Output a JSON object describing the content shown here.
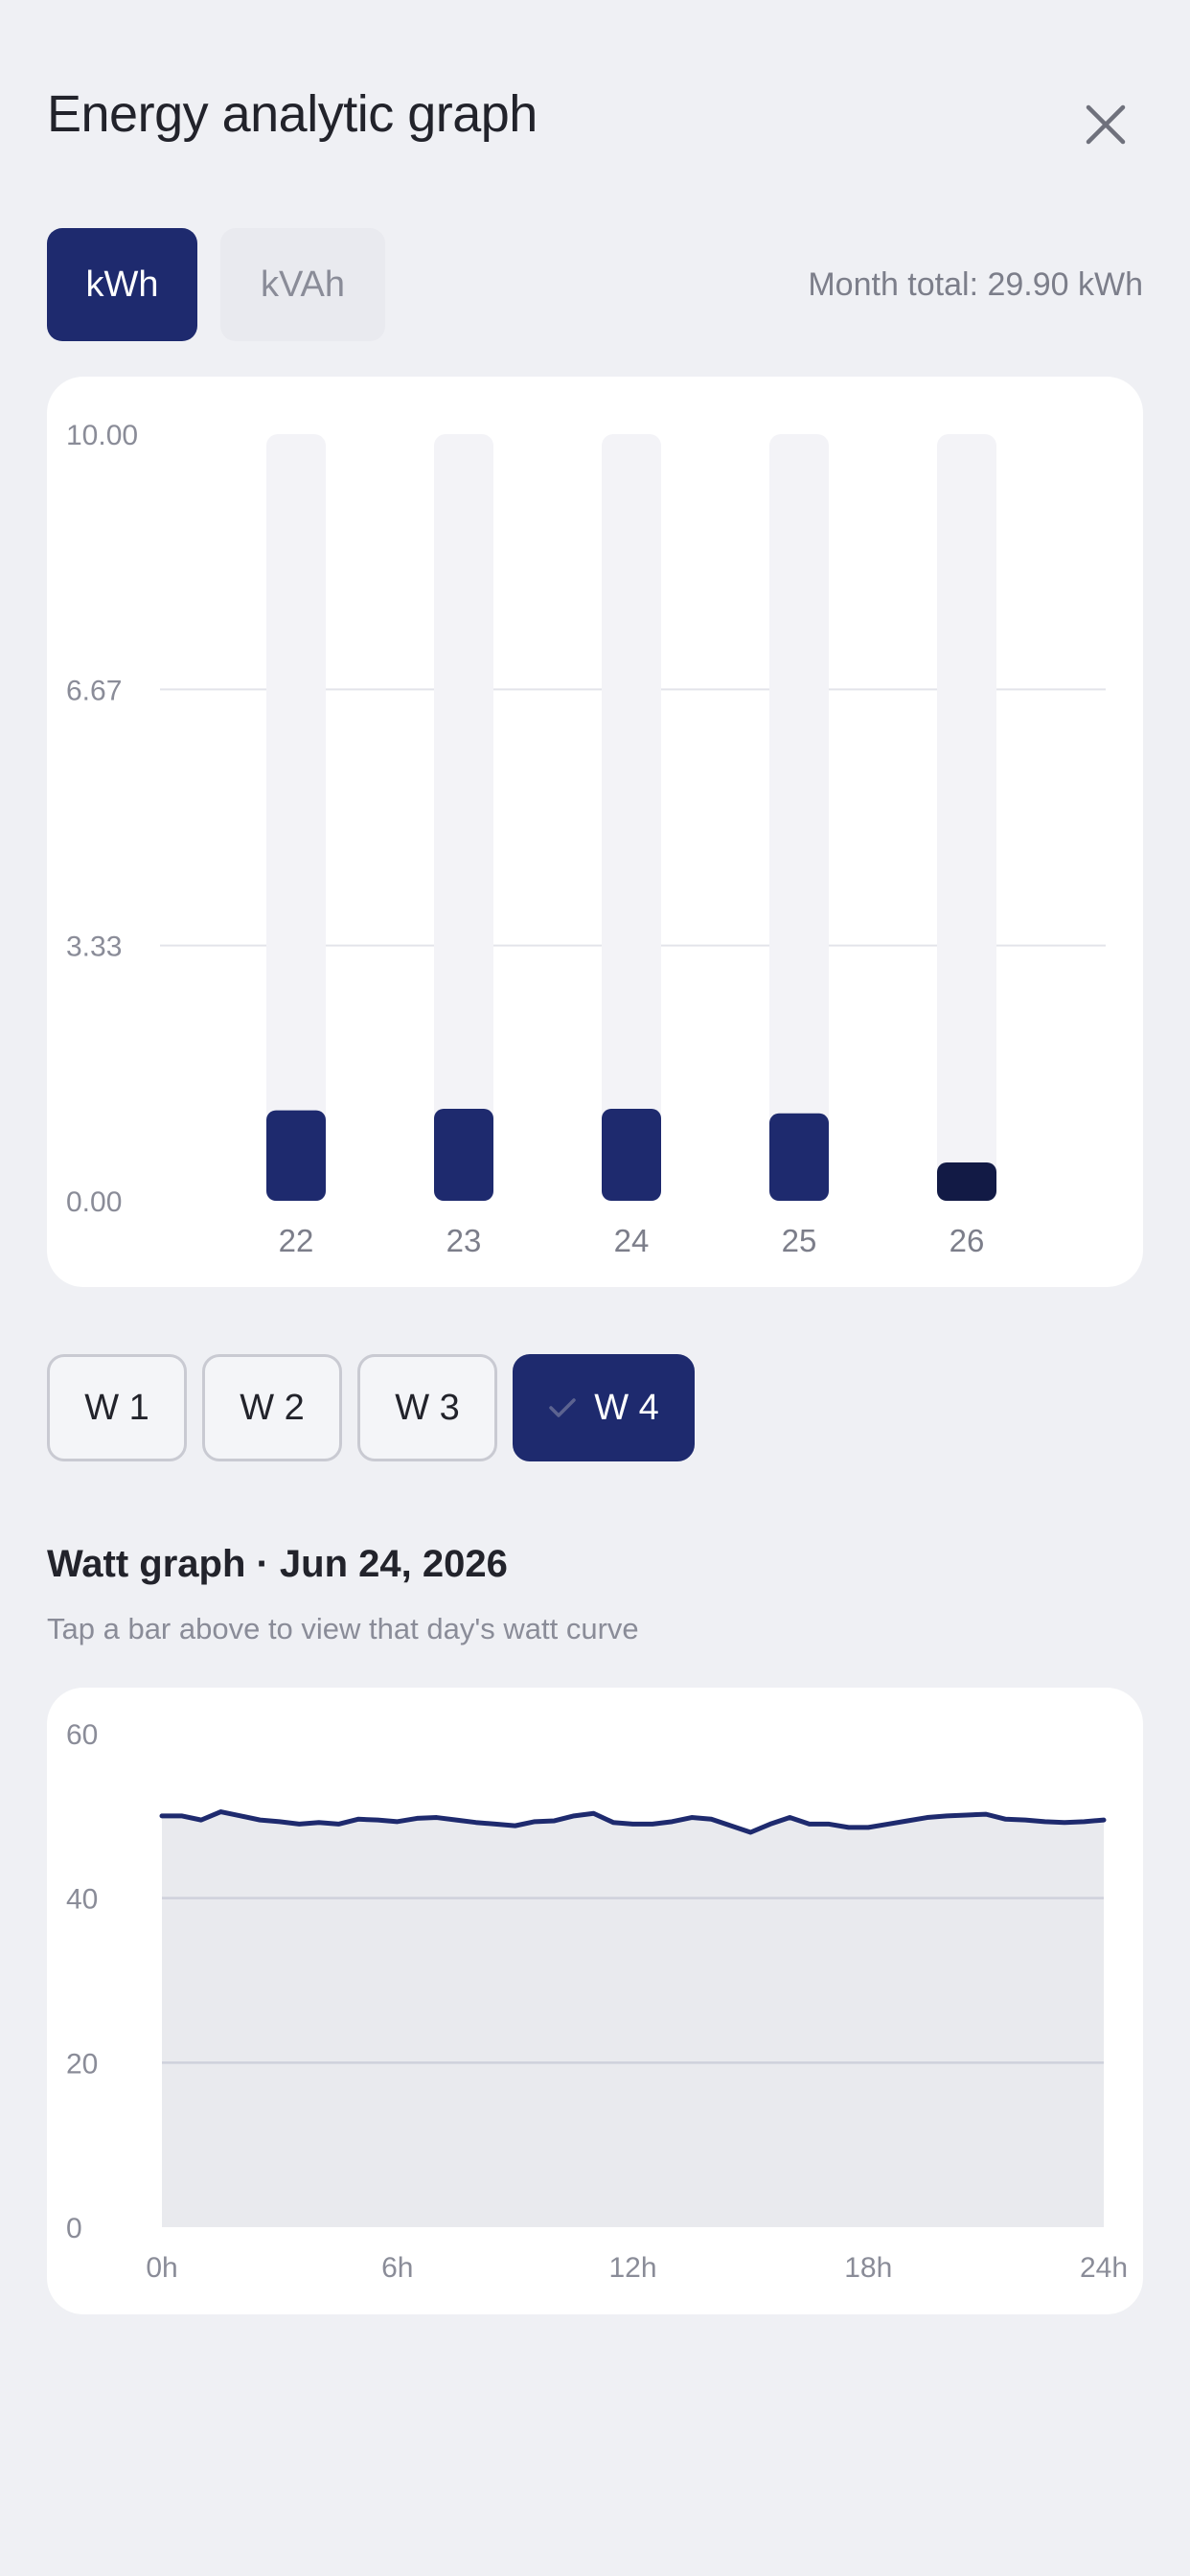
{
  "header": {
    "title": "Energy analytic graph"
  },
  "units": {
    "kwh_label": "kWh",
    "kvah_label": "kVAh",
    "selected": "kWh"
  },
  "month_total": "Month total: 29.90 kWh",
  "weeks": {
    "items": [
      "W 1",
      "W 2",
      "W 3",
      "W 4"
    ],
    "selected": "W 4"
  },
  "watt_section": {
    "title": "Watt graph · Jun 24, 2026",
    "subtitle": "Tap a bar above to view that day's watt curve"
  },
  "colors": {
    "accent": "#1e2a6e",
    "accent_dark": "#121a45",
    "track": "#f3f3f7",
    "grid": "#e3e4ea",
    "area_fill": "#e9eaee"
  },
  "chart_data": [
    {
      "type": "bar",
      "categories": [
        "22",
        "23",
        "24",
        "25",
        "26"
      ],
      "values": [
        1.18,
        1.2,
        1.2,
        1.14,
        0.5
      ],
      "ylim": [
        0,
        10
      ],
      "yticks": [
        "10.00",
        "6.67",
        "3.33",
        "0.00"
      ],
      "ytick_values": [
        10,
        6.67,
        3.33,
        0
      ],
      "highlighted": "26"
    },
    {
      "type": "area",
      "x": [
        0,
        0.5,
        1,
        1.5,
        2,
        2.5,
        3,
        3.5,
        4,
        4.5,
        5,
        5.5,
        6,
        6.5,
        7,
        7.5,
        8,
        8.5,
        9,
        9.5,
        10,
        10.5,
        11,
        11.5,
        12,
        12.5,
        13,
        13.5,
        14,
        14.5,
        15,
        15.5,
        16,
        16.5,
        17,
        17.5,
        18,
        18.5,
        19,
        19.5,
        20,
        20.5,
        21,
        21.5,
        22,
        22.5,
        23,
        23.5,
        24
      ],
      "values": [
        50,
        50,
        49.5,
        50.5,
        50,
        49.5,
        49.3,
        49,
        49.2,
        49,
        49.6,
        49.5,
        49.3,
        49.7,
        49.8,
        49.5,
        49.2,
        49,
        48.8,
        49.3,
        49.4,
        50,
        50.3,
        49.2,
        49,
        49,
        49.3,
        49.8,
        49.6,
        48.8,
        48,
        49,
        49.8,
        49,
        49,
        48.6,
        48.6,
        49,
        49.4,
        49.8,
        50,
        50.1,
        50.2,
        49.6,
        49.5,
        49.3,
        49.2,
        49.3,
        49.5
      ],
      "xticks": [
        "0h",
        "6h",
        "12h",
        "18h",
        "24h"
      ],
      "xtick_values": [
        0,
        6,
        12,
        18,
        24
      ],
      "yticks": [
        "60",
        "40",
        "20",
        "0"
      ],
      "ytick_values": [
        60,
        40,
        20,
        0
      ],
      "xlim": [
        0,
        24
      ],
      "ylim": [
        0,
        60
      ]
    }
  ]
}
